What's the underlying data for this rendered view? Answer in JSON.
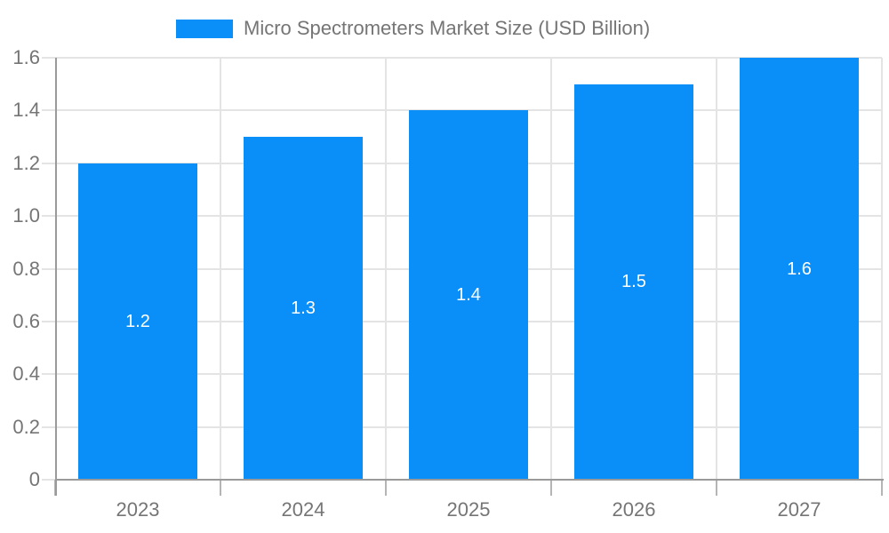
{
  "chart_data": {
    "type": "bar",
    "title": "Micro Spectrometers Market Size (USD Billion)",
    "categories": [
      "2023",
      "2024",
      "2025",
      "2026",
      "2027"
    ],
    "values": [
      1.2,
      1.3,
      1.4,
      1.5,
      1.6
    ],
    "bar_labels": [
      "1.2",
      "1.3",
      "1.4",
      "1.5",
      "1.6"
    ],
    "xlabel": "",
    "ylabel": "",
    "ylim": [
      0,
      1.6
    ],
    "y_tick_values": [
      0,
      0.2,
      0.4,
      0.6,
      0.8,
      1.0,
      1.2,
      1.4,
      1.6
    ],
    "y_tick_labels": [
      "0",
      "0.2",
      "0.4",
      "0.6",
      "0.8",
      "1.0",
      "1.2",
      "1.4",
      "1.6"
    ],
    "grid": true,
    "legend_position": "top",
    "colors": {
      "bar": "#0a8ff9",
      "axis": "#9a9a9a",
      "grid": "#e4e4e4",
      "tick": "#b5b5b5",
      "tick_text": "#757575",
      "bar_label_text": "#ffffff",
      "background": "#ffffff"
    }
  }
}
